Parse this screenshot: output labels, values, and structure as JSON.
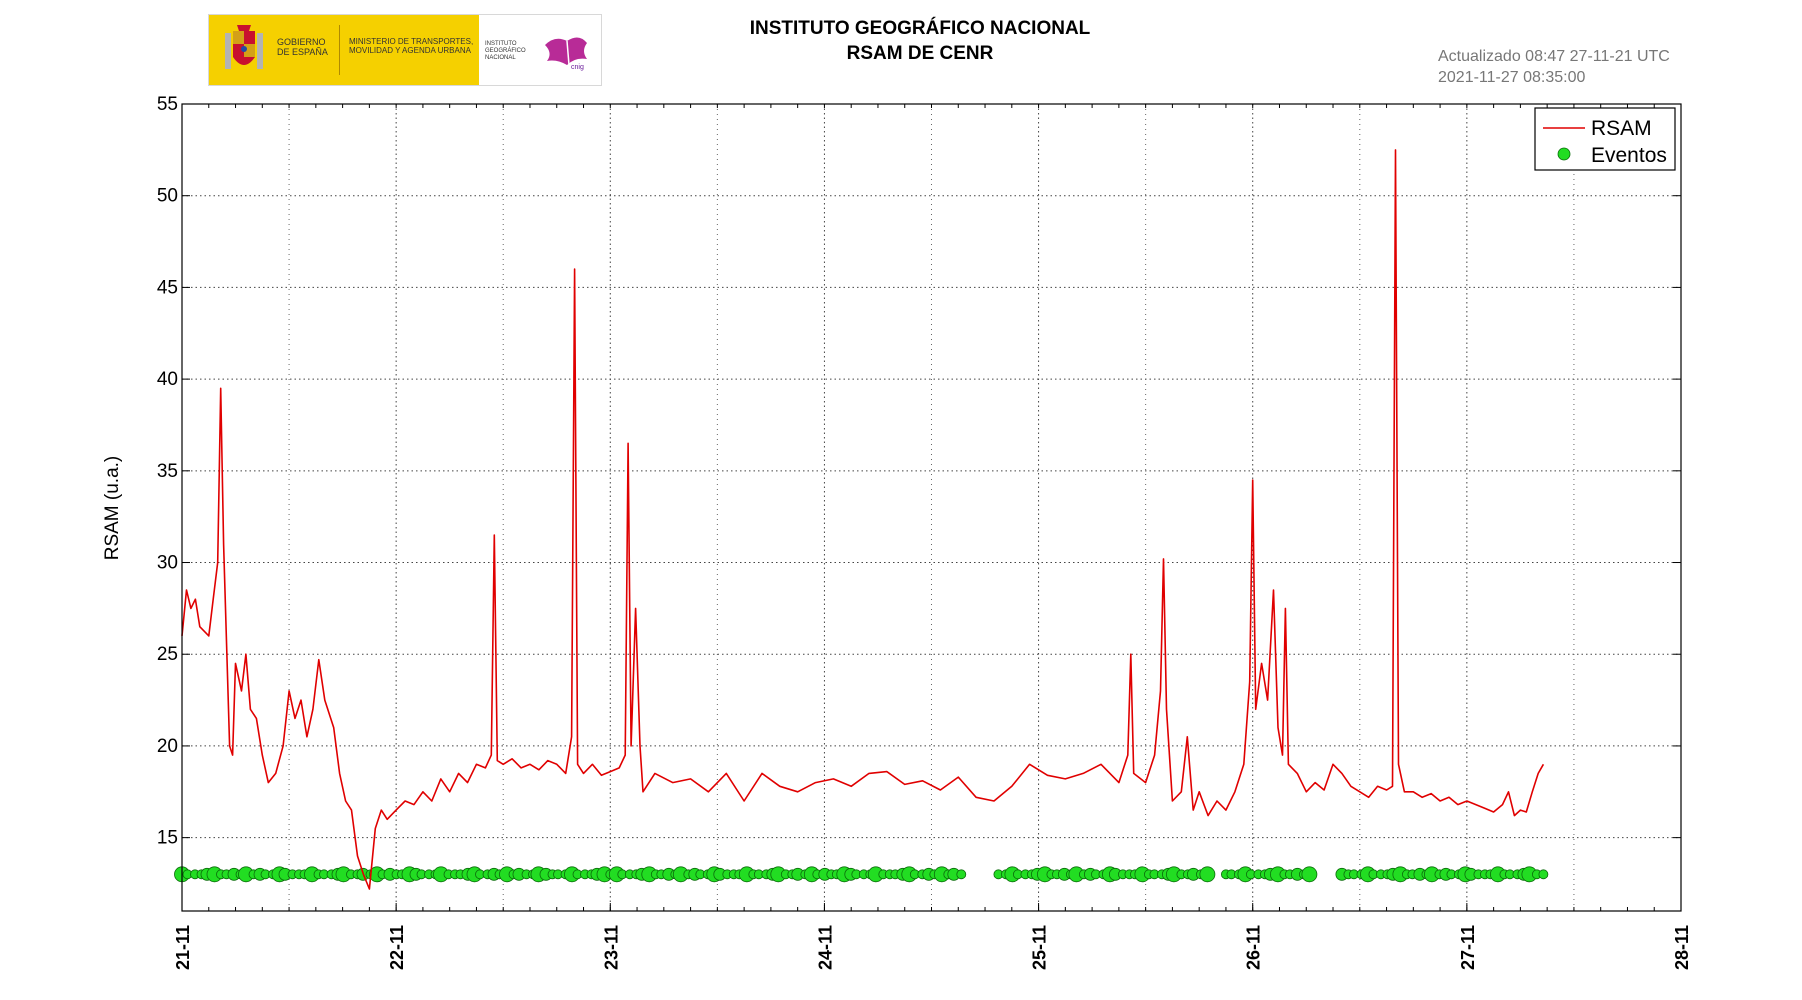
{
  "header": {
    "logo": {
      "gobierno": "GOBIERNO DE ESPAÑA",
      "ministerio": "MINISTERIO DE TRANSPORTES, MOVILIDAD Y AGENDA URBANA",
      "ign": "INSTITUTO GEOGRÁFICO NACIONAL",
      "brand_color": "#f5d000"
    },
    "title_line1": "INSTITUTO GEOGRÁFICO NACIONAL",
    "title_line2": "RSAM DE CENR",
    "updated_line1": "Actualizado 08:47 27-11-21 UTC",
    "updated_line2": "2021-11-27 08:35:00"
  },
  "chart_data": {
    "type": "line",
    "ylabel": "RSAM (u.a.)",
    "xlabel": "",
    "ylim": [
      11,
      55
    ],
    "yticks": [
      15,
      20,
      25,
      30,
      35,
      40,
      45,
      50,
      55
    ],
    "xlim": [
      "2021-11-21 00:00",
      "2021-11-28 00:00"
    ],
    "xticks": [
      "21-11",
      "22-11",
      "23-11",
      "24-11",
      "25-11",
      "26-11",
      "27-11",
      "28-11"
    ],
    "grid": true,
    "legend_position": "top-right",
    "series": [
      {
        "name": "RSAM",
        "color": "#e00000",
        "points": [
          [
            "2021-11-21 00:00",
            26.0
          ],
          [
            "2021-11-21 00:30",
            28.5
          ],
          [
            "2021-11-21 01:00",
            27.5
          ],
          [
            "2021-11-21 01:30",
            28.0
          ],
          [
            "2021-11-21 02:00",
            26.5
          ],
          [
            "2021-11-21 03:00",
            26.0
          ],
          [
            "2021-11-21 03:30",
            28.0
          ],
          [
            "2021-11-21 04:00",
            30.0
          ],
          [
            "2021-11-21 04:20",
            39.5
          ],
          [
            "2021-11-21 04:40",
            31.0
          ],
          [
            "2021-11-21 05:00",
            25.5
          ],
          [
            "2021-11-21 05:20",
            20.0
          ],
          [
            "2021-11-21 05:40",
            19.5
          ],
          [
            "2021-11-21 06:00",
            24.5
          ],
          [
            "2021-11-21 06:40",
            23.0
          ],
          [
            "2021-11-21 07:10",
            25.0
          ],
          [
            "2021-11-21 07:40",
            22.0
          ],
          [
            "2021-11-21 08:20",
            21.5
          ],
          [
            "2021-11-21 09:00",
            19.5
          ],
          [
            "2021-11-21 09:40",
            18.0
          ],
          [
            "2021-11-21 10:30",
            18.5
          ],
          [
            "2021-11-21 11:20",
            20.0
          ],
          [
            "2021-11-21 12:00",
            23.0
          ],
          [
            "2021-11-21 12:40",
            21.5
          ],
          [
            "2021-11-21 13:20",
            22.5
          ],
          [
            "2021-11-21 14:00",
            20.5
          ],
          [
            "2021-11-21 14:40",
            22.0
          ],
          [
            "2021-11-21 15:20",
            24.7
          ],
          [
            "2021-11-21 16:00",
            22.5
          ],
          [
            "2021-11-21 17:00",
            21.0
          ],
          [
            "2021-11-21 17:40",
            18.5
          ],
          [
            "2021-11-21 18:20",
            17.0
          ],
          [
            "2021-11-21 19:00",
            16.5
          ],
          [
            "2021-11-21 19:40",
            14.0
          ],
          [
            "2021-11-21 20:20",
            13.0
          ],
          [
            "2021-11-21 21:00",
            12.2
          ],
          [
            "2021-11-21 21:40",
            15.5
          ],
          [
            "2021-11-21 22:20",
            16.5
          ],
          [
            "2021-11-21 23:00",
            16.0
          ],
          [
            "2021-11-22 00:00",
            16.5
          ],
          [
            "2021-11-22 01:00",
            17.0
          ],
          [
            "2021-11-22 02:00",
            16.8
          ],
          [
            "2021-11-22 03:00",
            17.5
          ],
          [
            "2021-11-22 04:00",
            17.0
          ],
          [
            "2021-11-22 05:00",
            18.2
          ],
          [
            "2021-11-22 06:00",
            17.5
          ],
          [
            "2021-11-22 07:00",
            18.5
          ],
          [
            "2021-11-22 08:00",
            18.0
          ],
          [
            "2021-11-22 09:00",
            19.0
          ],
          [
            "2021-11-22 10:00",
            18.8
          ],
          [
            "2021-11-22 10:40",
            19.5
          ],
          [
            "2021-11-22 11:00",
            31.5
          ],
          [
            "2021-11-22 11:20",
            19.2
          ],
          [
            "2021-11-22 12:00",
            19.0
          ],
          [
            "2021-11-22 13:00",
            19.3
          ],
          [
            "2021-11-22 14:00",
            18.8
          ],
          [
            "2021-11-22 15:00",
            19.0
          ],
          [
            "2021-11-22 16:00",
            18.7
          ],
          [
            "2021-11-22 17:00",
            19.2
          ],
          [
            "2021-11-22 18:00",
            19.0
          ],
          [
            "2021-11-22 19:00",
            18.5
          ],
          [
            "2021-11-22 19:40",
            20.5
          ],
          [
            "2021-11-22 20:00",
            46.0
          ],
          [
            "2021-11-22 20:20",
            19.0
          ],
          [
            "2021-11-22 21:00",
            18.5
          ],
          [
            "2021-11-22 22:00",
            19.0
          ],
          [
            "2021-11-22 23:00",
            18.4
          ],
          [
            "2021-11-23 00:00",
            18.6
          ],
          [
            "2021-11-23 01:00",
            18.8
          ],
          [
            "2021-11-23 01:40",
            19.5
          ],
          [
            "2021-11-23 02:00",
            36.5
          ],
          [
            "2021-11-23 02:20",
            20.0
          ],
          [
            "2021-11-23 02:50",
            27.5
          ],
          [
            "2021-11-23 03:20",
            20.0
          ],
          [
            "2021-11-23 03:40",
            17.5
          ],
          [
            "2021-11-23 05:00",
            18.5
          ],
          [
            "2021-11-23 07:00",
            18.0
          ],
          [
            "2021-11-23 09:00",
            18.2
          ],
          [
            "2021-11-23 11:00",
            17.5
          ],
          [
            "2021-11-23 13:00",
            18.5
          ],
          [
            "2021-11-23 15:00",
            17.0
          ],
          [
            "2021-11-23 17:00",
            18.5
          ],
          [
            "2021-11-23 19:00",
            17.8
          ],
          [
            "2021-11-23 21:00",
            17.5
          ],
          [
            "2021-11-23 23:00",
            18.0
          ],
          [
            "2021-11-24 01:00",
            18.2
          ],
          [
            "2021-11-24 03:00",
            17.8
          ],
          [
            "2021-11-24 05:00",
            18.5
          ],
          [
            "2021-11-24 07:00",
            18.6
          ],
          [
            "2021-11-24 09:00",
            17.9
          ],
          [
            "2021-11-24 11:00",
            18.1
          ],
          [
            "2021-11-24 13:00",
            17.6
          ],
          [
            "2021-11-24 15:00",
            18.3
          ],
          [
            "2021-11-24 17:00",
            17.2
          ],
          [
            "2021-11-24 19:00",
            17.0
          ],
          [
            "2021-11-24 21:00",
            17.8
          ],
          [
            "2021-11-24 23:00",
            19.0
          ],
          [
            "2021-11-25 01:00",
            18.4
          ],
          [
            "2021-11-25 03:00",
            18.2
          ],
          [
            "2021-11-25 05:00",
            18.5
          ],
          [
            "2021-11-25 07:00",
            19.0
          ],
          [
            "2021-11-25 09:00",
            18.0
          ],
          [
            "2021-11-25 10:00",
            19.5
          ],
          [
            "2021-11-25 10:20",
            25.0
          ],
          [
            "2021-11-25 10:40",
            18.5
          ],
          [
            "2021-11-25 12:00",
            18.0
          ],
          [
            "2021-11-25 13:00",
            19.5
          ],
          [
            "2021-11-25 13:40",
            23.0
          ],
          [
            "2021-11-25 14:00",
            30.2
          ],
          [
            "2021-11-25 14:20",
            22.0
          ],
          [
            "2021-11-25 15:00",
            17.0
          ],
          [
            "2021-11-25 16:00",
            17.5
          ],
          [
            "2021-11-25 16:40",
            20.5
          ],
          [
            "2021-11-25 17:20",
            16.5
          ],
          [
            "2021-11-25 18:00",
            17.5
          ],
          [
            "2021-11-25 19:00",
            16.2
          ],
          [
            "2021-11-25 20:00",
            17.0
          ],
          [
            "2021-11-25 21:00",
            16.5
          ],
          [
            "2021-11-25 22:00",
            17.5
          ],
          [
            "2021-11-25 23:00",
            19.0
          ],
          [
            "2021-11-25 23:40",
            23.5
          ],
          [
            "2021-11-26 00:00",
            34.5
          ],
          [
            "2021-11-26 00:20",
            22.0
          ],
          [
            "2021-11-26 01:00",
            24.5
          ],
          [
            "2021-11-26 01:40",
            22.5
          ],
          [
            "2021-11-26 02:20",
            28.5
          ],
          [
            "2021-11-26 02:50",
            21.0
          ],
          [
            "2021-11-26 03:20",
            19.5
          ],
          [
            "2021-11-26 03:40",
            27.5
          ],
          [
            "2021-11-26 04:00",
            19.0
          ],
          [
            "2021-11-26 05:00",
            18.5
          ],
          [
            "2021-11-26 06:00",
            17.5
          ],
          [
            "2021-11-26 07:00",
            18.0
          ],
          [
            "2021-11-26 08:00",
            17.6
          ],
          [
            "2021-11-26 09:00",
            19.0
          ],
          [
            "2021-11-26 10:00",
            18.5
          ],
          [
            "2021-11-26 11:00",
            17.8
          ],
          [
            "2021-11-26 12:00",
            17.5
          ],
          [
            "2021-11-26 13:00",
            17.2
          ],
          [
            "2021-11-26 14:00",
            17.8
          ],
          [
            "2021-11-26 15:00",
            17.6
          ],
          [
            "2021-11-26 15:40",
            17.8
          ],
          [
            "2021-11-26 16:00",
            52.5
          ],
          [
            "2021-11-26 16:20",
            19.0
          ],
          [
            "2021-11-26 17:00",
            17.5
          ],
          [
            "2021-11-26 18:00",
            17.5
          ],
          [
            "2021-11-26 19:00",
            17.2
          ],
          [
            "2021-11-26 20:00",
            17.4
          ],
          [
            "2021-11-26 21:00",
            17.0
          ],
          [
            "2021-11-26 22:00",
            17.2
          ],
          [
            "2021-11-26 23:00",
            16.8
          ],
          [
            "2021-11-27 00:00",
            17.0
          ],
          [
            "2021-11-27 01:00",
            16.8
          ],
          [
            "2021-11-27 02:00",
            16.6
          ],
          [
            "2021-11-27 03:00",
            16.4
          ],
          [
            "2021-11-27 04:00",
            16.8
          ],
          [
            "2021-11-27 04:40",
            17.5
          ],
          [
            "2021-11-27 05:20",
            16.2
          ],
          [
            "2021-11-27 06:00",
            16.5
          ],
          [
            "2021-11-27 06:40",
            16.4
          ],
          [
            "2021-11-27 07:20",
            17.5
          ],
          [
            "2021-11-27 08:00",
            18.5
          ],
          [
            "2021-11-27 08:35",
            19.0
          ]
        ]
      },
      {
        "name": "Eventos",
        "color": "#22dd22",
        "y": 13,
        "segments": [
          [
            "2021-11-21 00:00",
            "2021-11-22 23:59"
          ],
          [
            "2021-11-23 00:00",
            "2021-11-24 16:00"
          ],
          [
            "2021-11-24 19:30",
            "2021-11-25 19:30"
          ],
          [
            "2021-11-25 21:00",
            "2021-11-26 07:00"
          ],
          [
            "2021-11-26 10:00",
            "2021-11-27 08:35"
          ]
        ]
      }
    ]
  }
}
